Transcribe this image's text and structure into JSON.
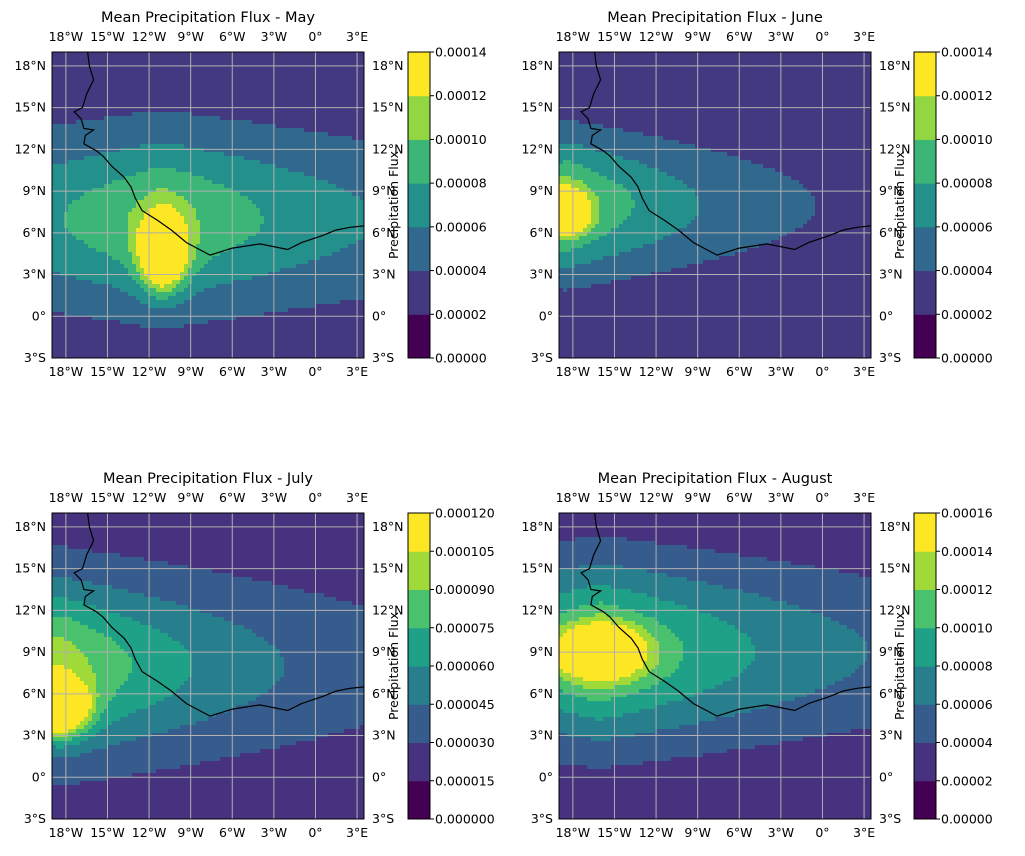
{
  "chart_data": [
    {
      "type": "heatmap",
      "title": "Mean Precipitation Flux - May",
      "lon_ticks": [
        "18°W",
        "15°W",
        "12°W",
        "9°W",
        "6°W",
        "3°W",
        "0°",
        "3°E"
      ],
      "lat_ticks": [
        "18°N",
        "15°N",
        "12°N",
        "9°N",
        "6°N",
        "3°N",
        "0°",
        "3°S"
      ],
      "xlim": [
        -19,
        3.5
      ],
      "ylim": [
        -3,
        19
      ],
      "colorbar": {
        "label": "Precipitation Flux",
        "levels": [
          "0.00000",
          "0.00002",
          "0.00004",
          "0.00006",
          "0.00008",
          "0.00010",
          "0.00012",
          "0.00014"
        ]
      },
      "field": {
        "peak_lon": -11,
        "peak_lat": 4.5,
        "peak": 0.000125,
        "sx": 1.6,
        "sy": 2.5,
        "band_lat": 7.0,
        "band_width": 6.0,
        "band_amp": 8.2e-05,
        "bg": 2.5e-05,
        "lon_decay": 18
      }
    },
    {
      "type": "heatmap",
      "title": "Mean Precipitation Flux - June",
      "lon_ticks": [
        "18°W",
        "15°W",
        "12°W",
        "9°W",
        "6°W",
        "3°W",
        "0°",
        "3°E"
      ],
      "lat_ticks": [
        "18°N",
        "15°N",
        "12°N",
        "9°N",
        "6°N",
        "3°N",
        "0°",
        "3°S"
      ],
      "xlim": [
        -19,
        3.5
      ],
      "ylim": [
        -3,
        19
      ],
      "colorbar": {
        "label": "Precipitation Flux",
        "levels": [
          "0.00000",
          "0.00002",
          "0.00004",
          "0.00006",
          "0.00008",
          "0.00010",
          "0.00012",
          "0.00014"
        ]
      },
      "field": {
        "peak_lon": -18.5,
        "peak_lat": 7.5,
        "peak": 0.000125,
        "sx": 1.5,
        "sy": 1.4,
        "band_lat": 8.0,
        "band_width": 5.0,
        "band_amp": 9e-05,
        "bg": 2e-05,
        "lon_decay": 12
      }
    },
    {
      "type": "heatmap",
      "title": "Mean Precipitation Flux - July",
      "lon_ticks": [
        "18°W",
        "15°W",
        "12°W",
        "9°W",
        "6°W",
        "3°W",
        "0°",
        "3°E"
      ],
      "lat_ticks": [
        "18°N",
        "15°N",
        "12°N",
        "9°N",
        "6°N",
        "3°N",
        "0°",
        "3°S"
      ],
      "xlim": [
        -19,
        3.5
      ],
      "ylim": [
        -3,
        19
      ],
      "colorbar": {
        "label": "Precipitation Flux",
        "levels": [
          "0.000000",
          "0.000015",
          "0.000030",
          "0.000045",
          "0.000060",
          "0.000075",
          "0.000090",
          "0.000105",
          "0.000120"
        ]
      },
      "field": {
        "peak_lon": -18.5,
        "peak_lat": 5.0,
        "peak": 0.000115,
        "sx": 2.0,
        "sy": 1.8,
        "band_lat": 8.0,
        "band_width": 6.0,
        "band_amp": 8e-05,
        "bg": 2e-05,
        "lon_decay": 14
      }
    },
    {
      "type": "heatmap",
      "title": "Mean Precipitation Flux - August",
      "lon_ticks": [
        "18°W",
        "15°W",
        "12°W",
        "9°W",
        "6°W",
        "3°W",
        "0°",
        "3°E"
      ],
      "lat_ticks": [
        "18°N",
        "15°N",
        "12°N",
        "9°N",
        "6°N",
        "3°N",
        "0°",
        "3°S"
      ],
      "xlim": [
        -19,
        3.5
      ],
      "ylim": [
        -3,
        19
      ],
      "colorbar": {
        "label": "Precipitation Flux",
        "levels": [
          "0.00000",
          "0.00002",
          "0.00004",
          "0.00006",
          "0.00008",
          "0.00010",
          "0.00012",
          "0.00014",
          "0.00016"
        ]
      },
      "field": {
        "peak_lon": -16,
        "peak_lat": 9.0,
        "peak": 0.00012,
        "sx": 3.0,
        "sy": 1.8,
        "band_lat": 9.0,
        "band_width": 6.5,
        "band_amp": 0.000105,
        "bg": 2e-05,
        "lon_decay": 20
      }
    }
  ]
}
